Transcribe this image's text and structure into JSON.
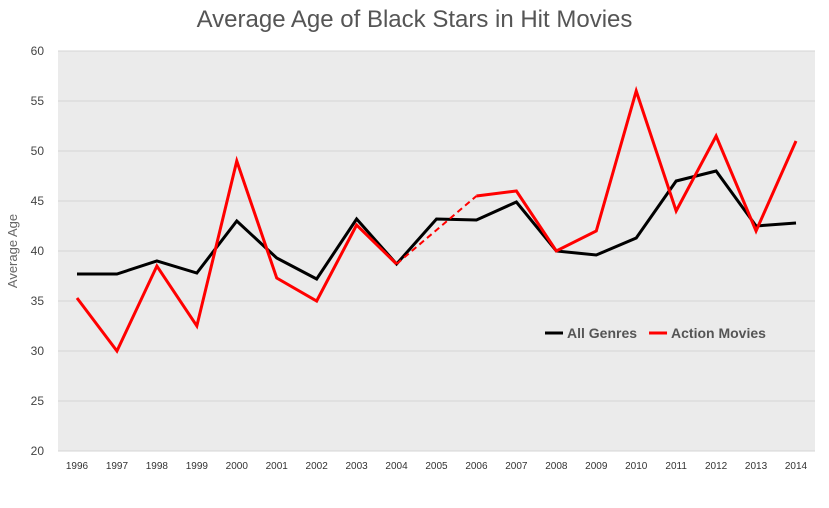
{
  "chart_data": {
    "type": "line",
    "title": "Average Age of Black Stars in Hit Movies",
    "xlabel": "",
    "ylabel": "Average Age",
    "ylim": [
      20,
      60
    ],
    "yticks": [
      20,
      25,
      30,
      35,
      40,
      45,
      50,
      55,
      60
    ],
    "grid": true,
    "legend_position": "center-right",
    "categories": [
      "1996",
      "1997",
      "1998",
      "1999",
      "2000",
      "2001",
      "2002",
      "2003",
      "2004",
      "2005",
      "2006",
      "2007",
      "2008",
      "2009",
      "2010",
      "2011",
      "2012",
      "2013",
      "2014"
    ],
    "series": [
      {
        "name": "All Genres",
        "color": "#000000",
        "values": [
          37.7,
          37.7,
          39.0,
          37.8,
          43.0,
          39.3,
          37.2,
          43.2,
          38.7,
          43.2,
          43.1,
          44.9,
          40.0,
          39.6,
          41.3,
          47.0,
          48.0,
          42.5,
          42.8
        ]
      },
      {
        "name": "Action Movies",
        "color": "#ff0000",
        "values": [
          35.3,
          30.0,
          38.5,
          32.5,
          49.0,
          37.3,
          35.0,
          42.6,
          38.7,
          null,
          45.5,
          46.0,
          40.0,
          42.0,
          56.0,
          44.0,
          51.5,
          42.0,
          51.0
        ]
      }
    ],
    "background": "#ebebeb"
  }
}
